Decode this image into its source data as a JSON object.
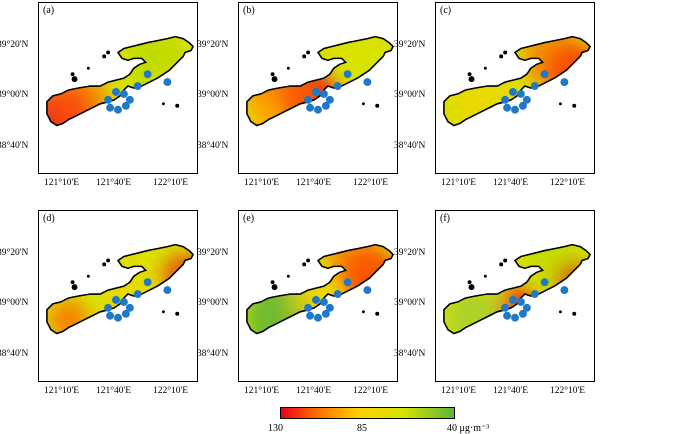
{
  "panels": [
    {
      "label": "(a)",
      "scheme": "a"
    },
    {
      "label": "(b)",
      "scheme": "b"
    },
    {
      "label": "(c)",
      "scheme": "c"
    },
    {
      "label": "(d)",
      "scheme": "d"
    },
    {
      "label": "(e)",
      "scheme": "e"
    },
    {
      "label": "(f)",
      "scheme": "f"
    }
  ],
  "lat_labels": [
    "39°20'N",
    "39°00'N",
    "38°40'N"
  ],
  "lon_labels": [
    "121°10'E",
    "121°40'E",
    "122°10'E"
  ],
  "colorbar": {
    "min_label": "130",
    "mid_label": "85",
    "max_label": "40 μg·m⁻³",
    "colors": [
      "#e8001a",
      "#ff6a00",
      "#ffd000",
      "#d7e500",
      "#5eb53a"
    ]
  }
}
